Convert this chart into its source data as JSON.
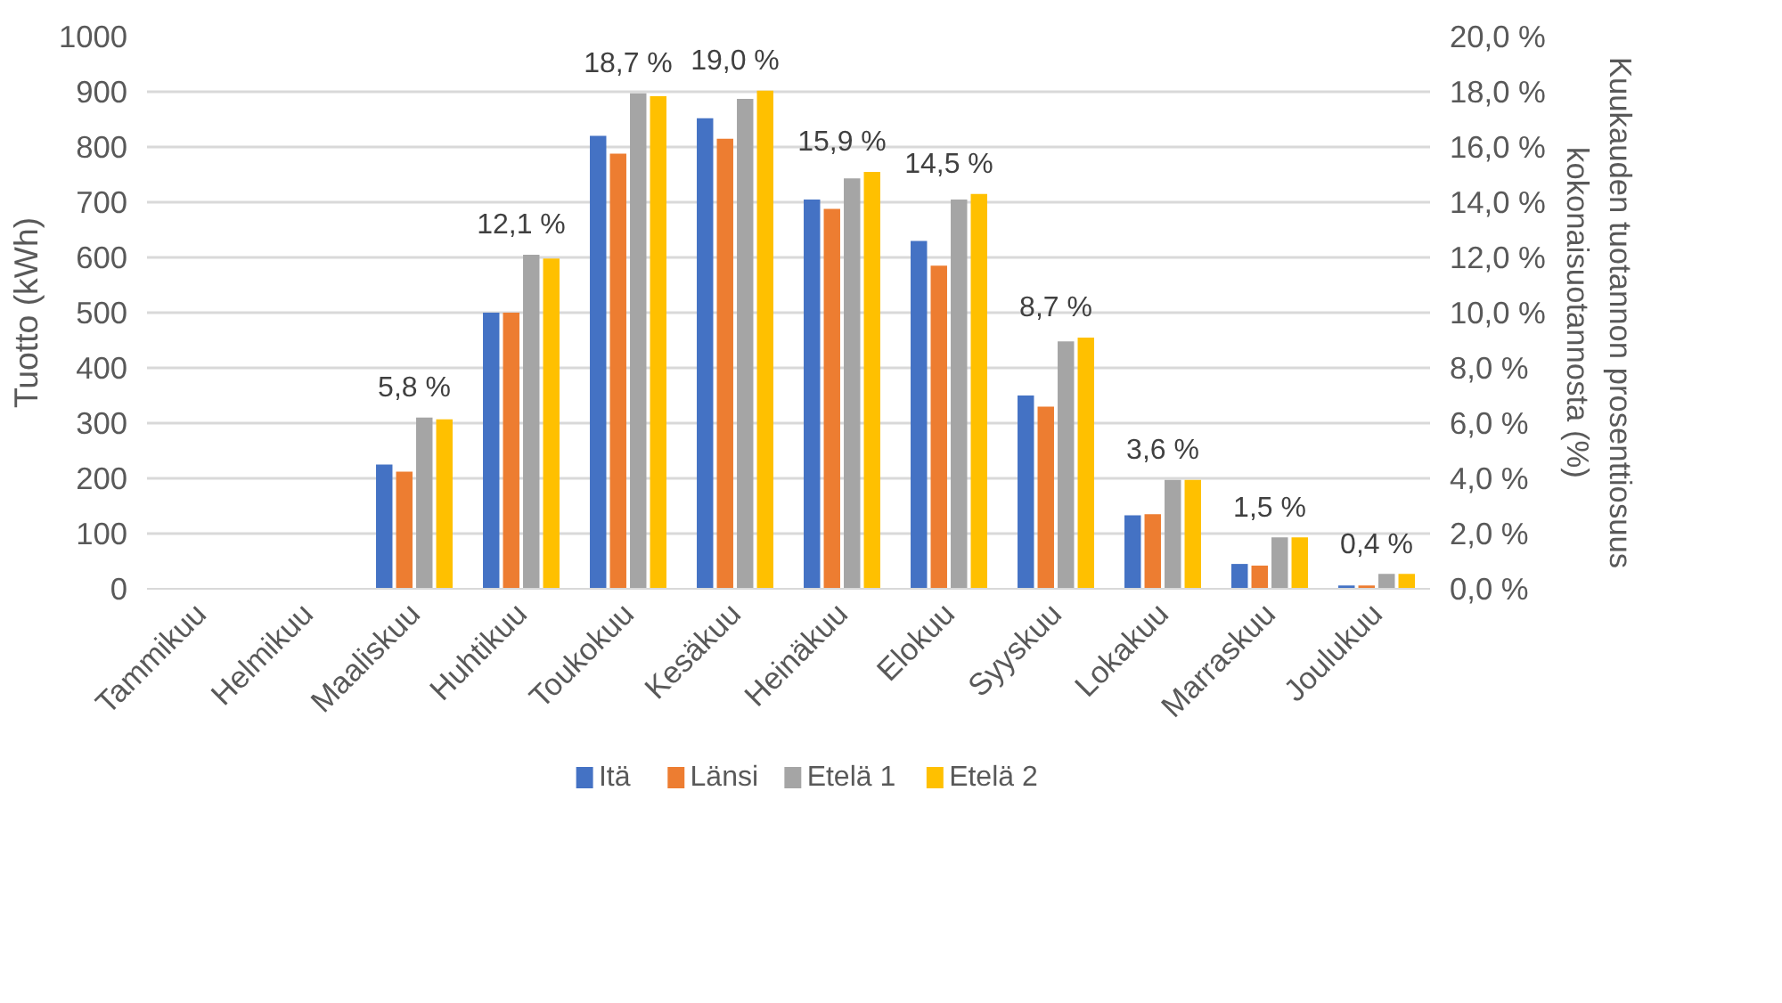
{
  "chart_data": {
    "type": "bar",
    "categories": [
      "Tammikuu",
      "Helmikuu",
      "Maaliskuu",
      "Huhtikuu",
      "Toukokuu",
      "Kesäkuu",
      "Heinäkuu",
      "Elokuu",
      "Syyskuu",
      "Lokakuu",
      "Marraskuu",
      "Joulukuu"
    ],
    "series": [
      {
        "name": "Itä",
        "color": "#4472c4",
        "values": [
          0,
          0,
          225,
          500,
          820,
          852,
          705,
          630,
          350,
          133,
          45,
          6
        ]
      },
      {
        "name": "Länsi",
        "color": "#ed7d31",
        "values": [
          0,
          0,
          212,
          500,
          788,
          815,
          688,
          585,
          330,
          135,
          42,
          6
        ]
      },
      {
        "name": "Etelä 1",
        "color": "#a5a5a5",
        "values": [
          0,
          0,
          310,
          605,
          897,
          887,
          743,
          705,
          448,
          197,
          93,
          27
        ]
      },
      {
        "name": "Etelä 2",
        "color": "#ffc000",
        "values": [
          0,
          0,
          307,
          598,
          892,
          902,
          755,
          715,
          455,
          197,
          93,
          27
        ]
      }
    ],
    "ylabel": "Tuotto (kWh)",
    "y2label": "Kuukauden tuotannon prosenttiosuus kokonaisuotannosta (%)",
    "ylim": [
      0,
      1000
    ],
    "yticks": [
      0,
      100,
      200,
      300,
      400,
      500,
      600,
      700,
      800,
      900,
      1000
    ],
    "y2lim": [
      0,
      20
    ],
    "y2ticks": [
      {
        "value": 0,
        "label": "0,0 %"
      },
      {
        "value": 2,
        "label": "2,0 %"
      },
      {
        "value": 4,
        "label": "4,0 %"
      },
      {
        "value": 6,
        "label": "6,0 %"
      },
      {
        "value": 8,
        "label": "8,0 %"
      },
      {
        "value": 10,
        "label": "10,0 %"
      },
      {
        "value": 12,
        "label": "12,0 %"
      },
      {
        "value": 14,
        "label": "14,0 %"
      },
      {
        "value": 16,
        "label": "16,0 %"
      },
      {
        "value": 18,
        "label": "18,0 %"
      },
      {
        "value": 20,
        "label": "20,0 %"
      }
    ],
    "annotations": [
      "5,8 %",
      "12,1 %",
      "18,7 %",
      "19,0 %",
      "15,9 %",
      "14,5 %",
      "8,7 %",
      "3,6 %",
      "1,5 %",
      "0,4 %"
    ],
    "grid": "y",
    "legend": "bottom"
  }
}
